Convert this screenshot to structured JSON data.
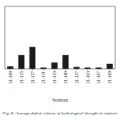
{
  "chart_data": {
    "type": "bar",
    "categories": [
      "21-109",
      "21-115",
      "21-127",
      "21-131",
      "21-133",
      "21-140",
      "21-157",
      "21-163",
      "21-167",
      "21-169"
    ],
    "values": [
      0.04,
      0.22,
      0.35,
      0.02,
      0.1,
      0.22,
      0.03,
      0.02,
      0.02,
      0.08
    ],
    "color": "#1a1a1a",
    "xlabel": "Station",
    "caption": "Fig. 4: Average deficit volume of hydrological drought in stations",
    "ylim": [
      0,
      1.0
    ],
    "tick_labels": "x"
  }
}
